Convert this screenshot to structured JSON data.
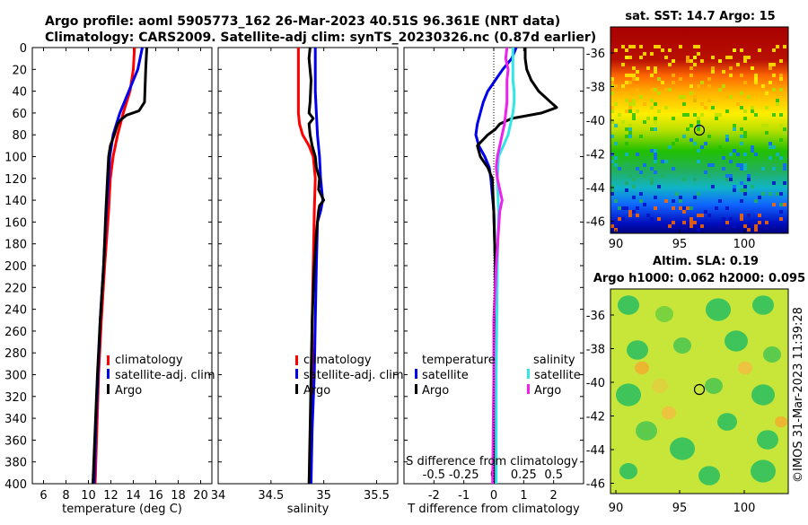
{
  "titles": {
    "line1": "Argo profile: aoml 5905773_162 26-Mar-2023 40.51S 96.361E (NRT data)",
    "line2": "Climatology: CARS2009. Satellite-adj clim: synTS_20230326.nc (0.87d earlier)"
  },
  "colors": {
    "climatology": "#ff0000",
    "satellite": "#0000ee",
    "argo": "#000000",
    "sal_satellite": "#33e6e6",
    "sal_argo": "#ee22ee"
  },
  "chart_data": [
    {
      "type": "line",
      "id": "temperature",
      "xlabel": "temperature (deg C)",
      "ylabel": "",
      "xlim": [
        5,
        21
      ],
      "ylim": [
        400,
        0
      ],
      "xticks": [
        6,
        8,
        10,
        12,
        14,
        16,
        18,
        20
      ],
      "xtick_labels": [
        "6",
        "8",
        "10",
        "12",
        "14",
        "16",
        "18",
        "20"
      ],
      "yticks": [
        0,
        20,
        40,
        60,
        80,
        100,
        120,
        140,
        160,
        180,
        200,
        220,
        240,
        260,
        280,
        300,
        320,
        340,
        360,
        380,
        400
      ],
      "legend": [
        "climatology",
        "satellite-adj. clim",
        "Argo"
      ],
      "series": [
        {
          "name": "climatology",
          "color": "climatology",
          "depth": [
            0,
            20,
            40,
            60,
            80,
            100,
            120,
            150,
            200,
            250,
            300,
            350,
            400
          ],
          "values": [
            14.1,
            14.0,
            13.7,
            13.1,
            12.6,
            12.2,
            11.95,
            11.8,
            11.45,
            11.15,
            10.9,
            10.75,
            10.6
          ]
        },
        {
          "name": "satellite-adj. clim",
          "color": "satellite",
          "depth": [
            0,
            10,
            20,
            30,
            40,
            50,
            60,
            80,
            100,
            120,
            150,
            200,
            250,
            300,
            350,
            400
          ],
          "values": [
            14.8,
            14.6,
            14.4,
            14.0,
            13.6,
            13.2,
            12.8,
            12.2,
            11.9,
            11.8,
            11.6,
            11.35,
            11.05,
            10.85,
            10.65,
            10.5
          ]
        },
        {
          "name": "Argo",
          "color": "argo",
          "depth": [
            0,
            20,
            50,
            58,
            62,
            66,
            70,
            80,
            90,
            100,
            120,
            150,
            200,
            250,
            300,
            350,
            400
          ],
          "values": [
            15.2,
            15.1,
            15.0,
            14.5,
            13.4,
            12.9,
            12.6,
            12.3,
            11.95,
            11.8,
            11.7,
            11.55,
            11.35,
            11.05,
            10.8,
            10.6,
            10.4
          ]
        }
      ]
    },
    {
      "type": "line",
      "id": "salinity",
      "xlabel": "salinity",
      "xlim": [
        34,
        35.7
      ],
      "ylim": [
        400,
        0
      ],
      "xticks": [
        34,
        34.5,
        35,
        35.5
      ],
      "xtick_labels": [
        "34",
        "34.5",
        "35",
        "35.5"
      ],
      "legend": [
        "climatology",
        "satellite-adj. clim",
        "Argo"
      ],
      "series": [
        {
          "name": "climatology",
          "color": "climatology",
          "depth": [
            0,
            20,
            40,
            60,
            70,
            80,
            90,
            100,
            110,
            120,
            150,
            200,
            250,
            300,
            350,
            400
          ],
          "values": [
            34.76,
            34.76,
            34.76,
            34.76,
            34.77,
            34.8,
            34.86,
            34.9,
            34.91,
            34.92,
            34.91,
            34.9,
            34.89,
            34.89,
            34.88,
            34.87
          ]
        },
        {
          "name": "satellite-adj. clim",
          "color": "satellite",
          "depth": [
            0,
            20,
            40,
            60,
            80,
            100,
            120,
            140,
            150,
            160,
            200,
            250,
            300,
            350,
            400
          ],
          "values": [
            34.92,
            34.92,
            34.92,
            34.93,
            34.94,
            34.96,
            34.97,
            34.99,
            34.97,
            34.94,
            34.93,
            34.92,
            34.91,
            34.89,
            34.88
          ]
        },
        {
          "name": "Argo",
          "color": "argo",
          "depth": [
            0,
            10,
            30,
            50,
            60,
            65,
            70,
            80,
            90,
            100,
            110,
            120,
            130,
            140,
            145,
            150,
            170,
            200,
            250,
            300,
            350,
            400
          ],
          "values": [
            34.87,
            34.86,
            34.88,
            34.87,
            34.86,
            34.9,
            34.86,
            34.87,
            34.89,
            34.92,
            34.93,
            34.96,
            34.95,
            35.0,
            34.96,
            34.95,
            34.93,
            34.91,
            34.89,
            34.88,
            34.87,
            34.86
          ]
        }
      ]
    },
    {
      "type": "line",
      "id": "differences",
      "xlabel": "T difference from climatology",
      "x2label": "S difference from climatology",
      "xlim": [
        -3,
        3
      ],
      "ylim": [
        400,
        0
      ],
      "xticks": [
        -2,
        -1,
        0,
        1,
        2
      ],
      "xtick_labels": [
        "-2",
        "-1",
        "0",
        "1",
        "2"
      ],
      "x2ticks": [
        -0.5,
        -0.25,
        0,
        0.25,
        0.5
      ],
      "x2tick_labels": [
        "-0.5",
        "-0.25",
        "0",
        "0.25",
        "0.5"
      ],
      "x2lim": [
        -0.75,
        0.75
      ],
      "legend_temperature_title": "temperature",
      "legend_salinity_title": "salinity",
      "legend": [
        "satellite",
        "Argo",
        "satellite",
        "Argo"
      ],
      "series": [
        {
          "name": "T satellite",
          "color": "satellite",
          "axis": "T",
          "depth": [
            0,
            10,
            20,
            30,
            40,
            50,
            60,
            70,
            80,
            90,
            100,
            110,
            120,
            150,
            200,
            300,
            400
          ],
          "values": [
            0.75,
            0.6,
            0.3,
            0.05,
            -0.2,
            -0.35,
            -0.45,
            -0.55,
            -0.6,
            -0.5,
            -0.3,
            -0.15,
            -0.1,
            0.0,
            0.05,
            0.05,
            0.05
          ]
        },
        {
          "name": "T Argo",
          "color": "argo",
          "axis": "T",
          "depth": [
            0,
            10,
            20,
            30,
            40,
            50,
            55,
            60,
            65,
            70,
            75,
            80,
            90,
            100,
            110,
            120,
            150,
            200,
            300,
            400
          ],
          "values": [
            1.05,
            1.05,
            1.1,
            1.25,
            1.5,
            1.9,
            2.1,
            1.6,
            0.6,
            0.2,
            0.05,
            -0.2,
            -0.55,
            -0.45,
            -0.2,
            -0.05,
            0.0,
            0.05,
            0.05,
            0.05
          ]
        },
        {
          "name": "S satellite",
          "color": "sal_satellite",
          "axis": "S",
          "depth": [
            0,
            10,
            20,
            30,
            40,
            50,
            60,
            70,
            80,
            90,
            100,
            120,
            150,
            200,
            300,
            400
          ],
          "values": [
            0.16,
            0.16,
            0.16,
            0.16,
            0.17,
            0.17,
            0.16,
            0.14,
            0.12,
            0.08,
            0.04,
            0.03,
            0.04,
            0.03,
            0.02,
            0.02
          ]
        },
        {
          "name": "S Argo",
          "color": "sal_argo",
          "axis": "S",
          "depth": [
            0,
            10,
            20,
            30,
            40,
            50,
            60,
            70,
            80,
            90,
            100,
            110,
            120,
            140,
            150,
            200,
            250,
            300,
            400
          ],
          "values": [
            0.11,
            0.1,
            0.12,
            0.11,
            0.11,
            0.11,
            0.1,
            0.09,
            0.07,
            0.05,
            0.03,
            0.02,
            0.03,
            0.07,
            0.05,
            0.02,
            0.0,
            0.0,
            -0.01
          ]
        }
      ]
    }
  ],
  "maps": {
    "sst": {
      "title": "sat. SST: 14.7 Argo: 15",
      "lon_ticks": [
        "90",
        "95",
        "100"
      ],
      "lat_ticks": [
        "-36",
        "-38",
        "-40",
        "-42",
        "-44",
        "-46"
      ]
    },
    "sla": {
      "title1": "Altim. SLA: 0.19",
      "title2": "Argo h1000: 0.062 h2000: 0.095",
      "lon_ticks": [
        "90",
        "95",
        "100"
      ],
      "lat_ticks": [
        "-36",
        "-38",
        "-40",
        "-42",
        "-44",
        "-46"
      ]
    }
  },
  "copyright": "©IMOS 31-Mar-2023 11:39:28"
}
